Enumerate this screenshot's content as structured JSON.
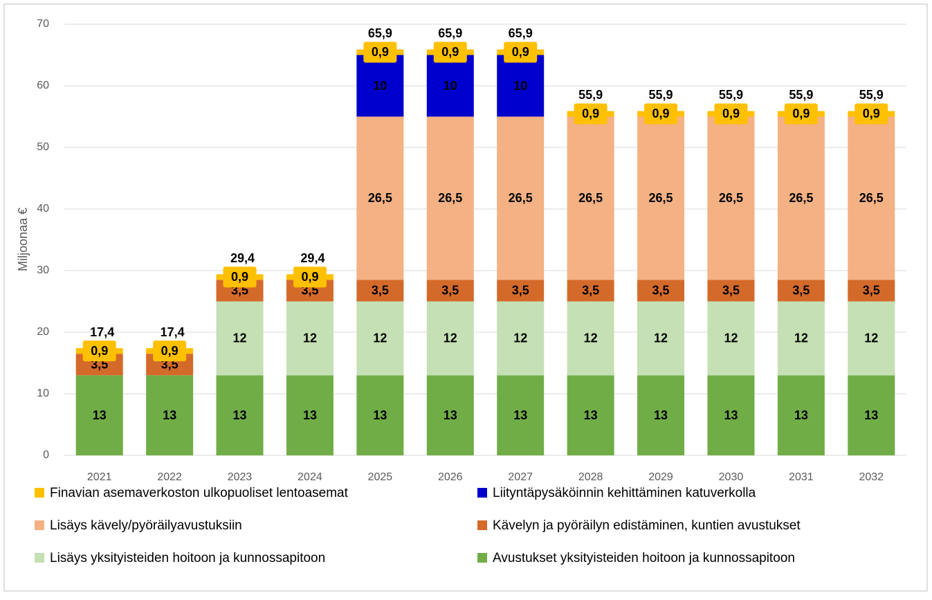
{
  "chart_data": {
    "type": "stacked_bar",
    "y_label": "Miljoonaa €",
    "categories": [
      "2021",
      "2022",
      "2023",
      "2024",
      "2025",
      "2026",
      "2027",
      "2028",
      "2029",
      "2030",
      "2031",
      "2032"
    ],
    "ylim": [
      0,
      70
    ],
    "yticks": [
      0,
      10,
      20,
      30,
      40,
      50,
      60,
      70
    ],
    "grid": true,
    "legend": "bottom",
    "series": [
      {
        "name": "Avustukset yksityisteiden hoitoon ja kunnossapitoon",
        "color": "#70ad47",
        "values": [
          13,
          13,
          13,
          13,
          13,
          13,
          13,
          13,
          13,
          13,
          13,
          13
        ]
      },
      {
        "name": "Lisäys yksityisteiden hoitoon ja kunnossapitoon",
        "color": "#c5e0b4",
        "values": [
          null,
          null,
          12,
          12,
          12,
          12,
          12,
          12,
          12,
          12,
          12,
          12
        ]
      },
      {
        "name": "Kävelyn ja pyöräilyn edistäminen, kuntien avustukset",
        "color": "#d46a2a",
        "values": [
          3.5,
          3.5,
          3.5,
          3.5,
          3.5,
          3.5,
          3.5,
          3.5,
          3.5,
          3.5,
          3.5,
          3.5
        ],
        "value_labels": [
          "3,5",
          "3,5",
          "3,5",
          "3,5",
          "3,5",
          "3,5",
          "3,5",
          "3,5",
          "3,5",
          "3,5",
          "3,5",
          "3,5"
        ]
      },
      {
        "name": "Lisäys kävely/pyöräilyavustuksiin",
        "color": "#f4b183",
        "values": [
          null,
          null,
          null,
          null,
          26.5,
          26.5,
          26.5,
          26.5,
          26.5,
          26.5,
          26.5,
          26.5
        ],
        "value_labels": [
          null,
          null,
          null,
          null,
          "26,5",
          "26,5",
          "26,5",
          "26,5",
          "26,5",
          "26,5",
          "26,5",
          "26,5"
        ]
      },
      {
        "name": "Liityntäpysäköinnin kehittäminen katuverkolla",
        "color": "#0000cc",
        "label_color": "#ffffff",
        "values": [
          null,
          null,
          null,
          null,
          10,
          10,
          10,
          null,
          null,
          null,
          null,
          null
        ]
      },
      {
        "name": "Finavian asemaverkoston ulkopuoliset lentoasemat",
        "color": "#ffc000",
        "values": [
          0.9,
          0.9,
          0.9,
          0.9,
          0.9,
          0.9,
          0.9,
          0.9,
          0.9,
          0.9,
          0.9,
          0.9
        ],
        "value_labels": [
          "0,9",
          "0,9",
          "0,9",
          "0,9",
          "0,9",
          "0,9",
          "0,9",
          "0,9",
          "0,9",
          "0,9",
          "0,9",
          "0,9"
        ]
      }
    ],
    "totals": [
      17.4,
      17.4,
      29.4,
      29.4,
      65.9,
      65.9,
      65.9,
      55.9,
      55.9,
      55.9,
      55.9,
      55.9
    ],
    "total_labels": [
      "17,4",
      "17,4",
      "29,4",
      "29,4",
      "65,9",
      "65,9",
      "65,9",
      "55,9",
      "55,9",
      "55,9",
      "55,9",
      "55,9"
    ]
  }
}
